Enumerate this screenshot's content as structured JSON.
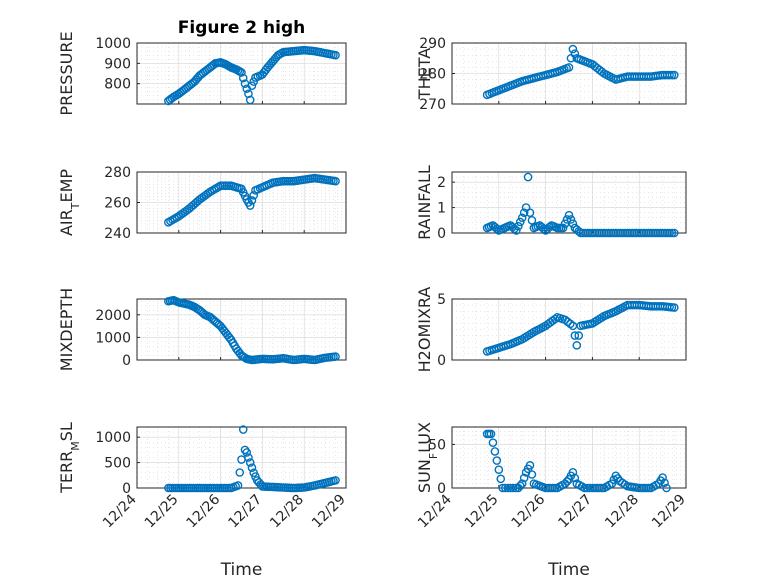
{
  "chart_data": [
    {
      "type": "scatter",
      "title": "Figure 2 high",
      "ylabel": "PRESSURE",
      "xlabel": "",
      "ylim": [
        700,
        1000
      ],
      "yticks": [
        800,
        900,
        1000
      ],
      "xlim": [
        "12/24",
        "12/29"
      ],
      "grid": true,
      "series": [
        {
          "x": [
            "12/24 18:00",
            "12/24 21:00",
            "12/25 00:00",
            "12/25 03:00",
            "12/25 06:00",
            "12/25 09:00",
            "12/25 12:00",
            "12/25 15:00",
            "12/25 18:00",
            "12/25 21:00",
            "12/26 00:00",
            "12/26 03:00",
            "12/26 06:00",
            "12/26 09:00",
            "12/26 12:00",
            "12/26 14:00",
            "12/26 16:00",
            "12/26 17:00",
            "12/26 18:00",
            "12/26 20:00",
            "12/27 00:00",
            "12/27 03:00",
            "12/27 06:00",
            "12/27 09:00",
            "12/27 12:00",
            "12/27 18:00",
            "12/28 00:00",
            "12/28 06:00",
            "12/28 12:00",
            "12/28 18:00"
          ],
          "y": [
            715,
            735,
            750,
            770,
            790,
            810,
            840,
            860,
            880,
            900,
            905,
            895,
            880,
            870,
            855,
            800,
            750,
            720,
            790,
            830,
            845,
            880,
            910,
            940,
            955,
            960,
            965,
            960,
            950,
            940
          ]
        }
      ]
    },
    {
      "type": "scatter",
      "title": "",
      "ylabel": "THETA",
      "xlabel": "",
      "ylim": [
        270,
        290
      ],
      "yticks": [
        270,
        280,
        290
      ],
      "xlim": [
        "12/24",
        "12/29"
      ],
      "grid": true,
      "series": [
        {
          "x": [
            "12/24 18:00",
            "12/25 00:00",
            "12/25 06:00",
            "12/25 12:00",
            "12/25 18:00",
            "12/26 00:00",
            "12/26 06:00",
            "12/26 12:00",
            "12/26 14:00",
            "12/26 16:00",
            "12/26 18:00",
            "12/27 00:00",
            "12/27 06:00",
            "12/27 12:00",
            "12/27 18:00",
            "12/28 00:00",
            "12/28 06:00",
            "12/28 12:00",
            "12/28 18:00"
          ],
          "y": [
            273,
            274.5,
            276,
            277.5,
            278.5,
            279.5,
            280.5,
            282,
            288,
            285,
            284.5,
            283,
            280,
            278,
            279,
            279,
            279,
            279.5,
            279.5
          ]
        }
      ]
    },
    {
      "type": "scatter",
      "title": "",
      "ylabel": "AIR_TEMP",
      "xlabel": "",
      "ylim": [
        240,
        280
      ],
      "yticks": [
        240,
        260,
        280
      ],
      "xlim": [
        "12/24",
        "12/29"
      ],
      "grid": true,
      "series": [
        {
          "x": [
            "12/24 18:00",
            "12/25 00:00",
            "12/25 06:00",
            "12/25 12:00",
            "12/25 18:00",
            "12/26 00:00",
            "12/26 06:00",
            "12/26 12:00",
            "12/26 15:00",
            "12/26 17:00",
            "12/26 20:00",
            "12/27 00:00",
            "12/27 06:00",
            "12/27 12:00",
            "12/27 18:00",
            "12/28 00:00",
            "12/28 06:00",
            "12/28 12:00",
            "12/28 18:00"
          ],
          "y": [
            247,
            251,
            256,
            262,
            267,
            271,
            271,
            269,
            262,
            258,
            268,
            270,
            273,
            274,
            274,
            275,
            276,
            275,
            274
          ]
        }
      ]
    },
    {
      "type": "scatter",
      "title": "",
      "ylabel": "RAINFALL",
      "xlabel": "",
      "ylim": [
        0,
        2.4
      ],
      "yticks": [
        0,
        1,
        2
      ],
      "xlim": [
        "12/24",
        "12/29"
      ],
      "grid": true,
      "series": [
        {
          "x": [
            "12/24 18:00",
            "12/24 21:00",
            "12/25 00:00",
            "12/25 03:00",
            "12/25 06:00",
            "12/25 09:00",
            "12/25 12:00",
            "12/25 14:00",
            "12/25 15:00",
            "12/25 16:00",
            "12/25 18:00",
            "12/25 21:00",
            "12/26 00:00",
            "12/26 03:00",
            "12/26 06:00",
            "12/26 09:00",
            "12/26 12:00",
            "12/26 15:00",
            "12/26 18:00",
            "12/27 00:00",
            "12/27 06:00",
            "12/27 12:00",
            "12/27 18:00",
            "12/28 00:00",
            "12/28 06:00",
            "12/28 12:00",
            "12/28 18:00"
          ],
          "y": [
            0.2,
            0.3,
            0.1,
            0.2,
            0.3,
            0.1,
            0.6,
            1.0,
            2.2,
            0.8,
            0.2,
            0.3,
            0.1,
            0.3,
            0.2,
            0.2,
            0.7,
            0.2,
            0.0,
            0.0,
            0.0,
            0.0,
            0.0,
            0.0,
            0.0,
            0.0,
            0.0
          ]
        }
      ]
    },
    {
      "type": "scatter",
      "title": "",
      "ylabel": "MIXDEPTH",
      "xlabel": "",
      "ylim": [
        0,
        2700
      ],
      "yticks": [
        0,
        1000,
        2000
      ],
      "xlim": [
        "12/24",
        "12/29"
      ],
      "grid": true,
      "series": [
        {
          "x": [
            "12/24 18:00",
            "12/24 21:00",
            "12/25 00:00",
            "12/25 03:00",
            "12/25 06:00",
            "12/25 09:00",
            "12/25 12:00",
            "12/25 15:00",
            "12/25 18:00",
            "12/25 21:00",
            "12/26 00:00",
            "12/26 03:00",
            "12/26 06:00",
            "12/26 09:00",
            "12/26 12:00",
            "12/26 15:00",
            "12/26 18:00",
            "12/27 00:00",
            "12/27 06:00",
            "12/27 12:00",
            "12/27 18:00",
            "12/28 00:00",
            "12/28 06:00",
            "12/28 12:00",
            "12/28 18:00"
          ],
          "y": [
            2600,
            2650,
            2550,
            2500,
            2450,
            2350,
            2200,
            2000,
            1900,
            1700,
            1500,
            1200,
            900,
            500,
            200,
            50,
            0,
            50,
            30,
            80,
            0,
            50,
            0,
            100,
            150
          ]
        }
      ]
    },
    {
      "type": "scatter",
      "title": "",
      "ylabel": "H2OMIXRA",
      "xlabel": "",
      "ylim": [
        0,
        5
      ],
      "yticks": [
        0,
        5
      ],
      "xlim": [
        "12/24",
        "12/29"
      ],
      "grid": true,
      "series": [
        {
          "x": [
            "12/24 18:00",
            "12/25 00:00",
            "12/25 06:00",
            "12/25 12:00",
            "12/25 18:00",
            "12/26 00:00",
            "12/26 06:00",
            "12/26 10:00",
            "12/26 14:00",
            "12/26 16:00",
            "12/26 18:00",
            "12/27 00:00",
            "12/27 06:00",
            "12/27 12:00",
            "12/27 18:00",
            "12/28 00:00",
            "12/28 06:00",
            "12/28 12:00",
            "12/28 18:00"
          ],
          "y": [
            0.7,
            1.0,
            1.3,
            1.7,
            2.3,
            2.8,
            3.5,
            3.3,
            2.8,
            1.2,
            2.8,
            3.0,
            3.6,
            4.0,
            4.5,
            4.5,
            4.4,
            4.4,
            4.3
          ]
        }
      ]
    },
    {
      "type": "scatter",
      "title": "",
      "ylabel": "TERR_MSL",
      "xlabel": "Time",
      "ylim": [
        0,
        1200
      ],
      "yticks": [
        0,
        500,
        1000
      ],
      "xticks": [
        "12/24",
        "12/25",
        "12/26",
        "12/27",
        "12/28",
        "12/29"
      ],
      "xlim": [
        "12/24",
        "12/29"
      ],
      "grid": true,
      "series": [
        {
          "x": [
            "12/24 18:00",
            "12/25 00:00",
            "12/25 06:00",
            "12/25 12:00",
            "12/25 18:00",
            "12/26 00:00",
            "12/26 06:00",
            "12/26 10:00",
            "12/26 12:00",
            "12/26 13:00",
            "12/26 14:00",
            "12/26 15:00",
            "12/26 17:00",
            "12/26 19:00",
            "12/26 21:00",
            "12/27 00:00",
            "12/27 06:00",
            "12/27 12:00",
            "12/27 18:00",
            "12/28 00:00",
            "12/28 06:00",
            "12/28 12:00",
            "12/28 18:00"
          ],
          "y": [
            0,
            0,
            0,
            0,
            0,
            0,
            0,
            50,
            560,
            1150,
            750,
            700,
            500,
            300,
            150,
            30,
            20,
            10,
            0,
            10,
            50,
            100,
            150
          ]
        }
      ]
    },
    {
      "type": "scatter",
      "title": "",
      "ylabel": "SUN_FLUX",
      "xlabel": "Time",
      "ylim": [
        0,
        70
      ],
      "yticks": [
        0,
        50
      ],
      "xticks": [
        "12/24",
        "12/25",
        "12/26",
        "12/27",
        "12/28",
        "12/29"
      ],
      "xlim": [
        "12/24",
        "12/29"
      ],
      "grid": true,
      "series": [
        {
          "x": [
            "12/24 18:00",
            "12/24 20:00",
            "12/24 22:00",
            "12/25 00:00",
            "12/25 02:00",
            "12/25 06:00",
            "12/25 10:00",
            "12/25 12:00",
            "12/25 14:00",
            "12/25 16:00",
            "12/25 18:00",
            "12/26 00:00",
            "12/26 06:00",
            "12/26 10:00",
            "12/26 12:00",
            "12/26 14:00",
            "12/26 16:00",
            "12/26 20:00",
            "12/27 00:00",
            "12/27 06:00",
            "12/27 10:00",
            "12/27 12:00",
            "12/27 14:00",
            "12/27 18:00",
            "12/28 00:00",
            "12/28 06:00",
            "12/28 10:00",
            "12/28 12:00",
            "12/28 14:00"
          ],
          "y": [
            62,
            62,
            42,
            21,
            0,
            0,
            0,
            5,
            18,
            26,
            5,
            0,
            0,
            5,
            10,
            18,
            5,
            0,
            0,
            0,
            5,
            14,
            8,
            2,
            0,
            0,
            5,
            12,
            0
          ]
        }
      ]
    }
  ]
}
